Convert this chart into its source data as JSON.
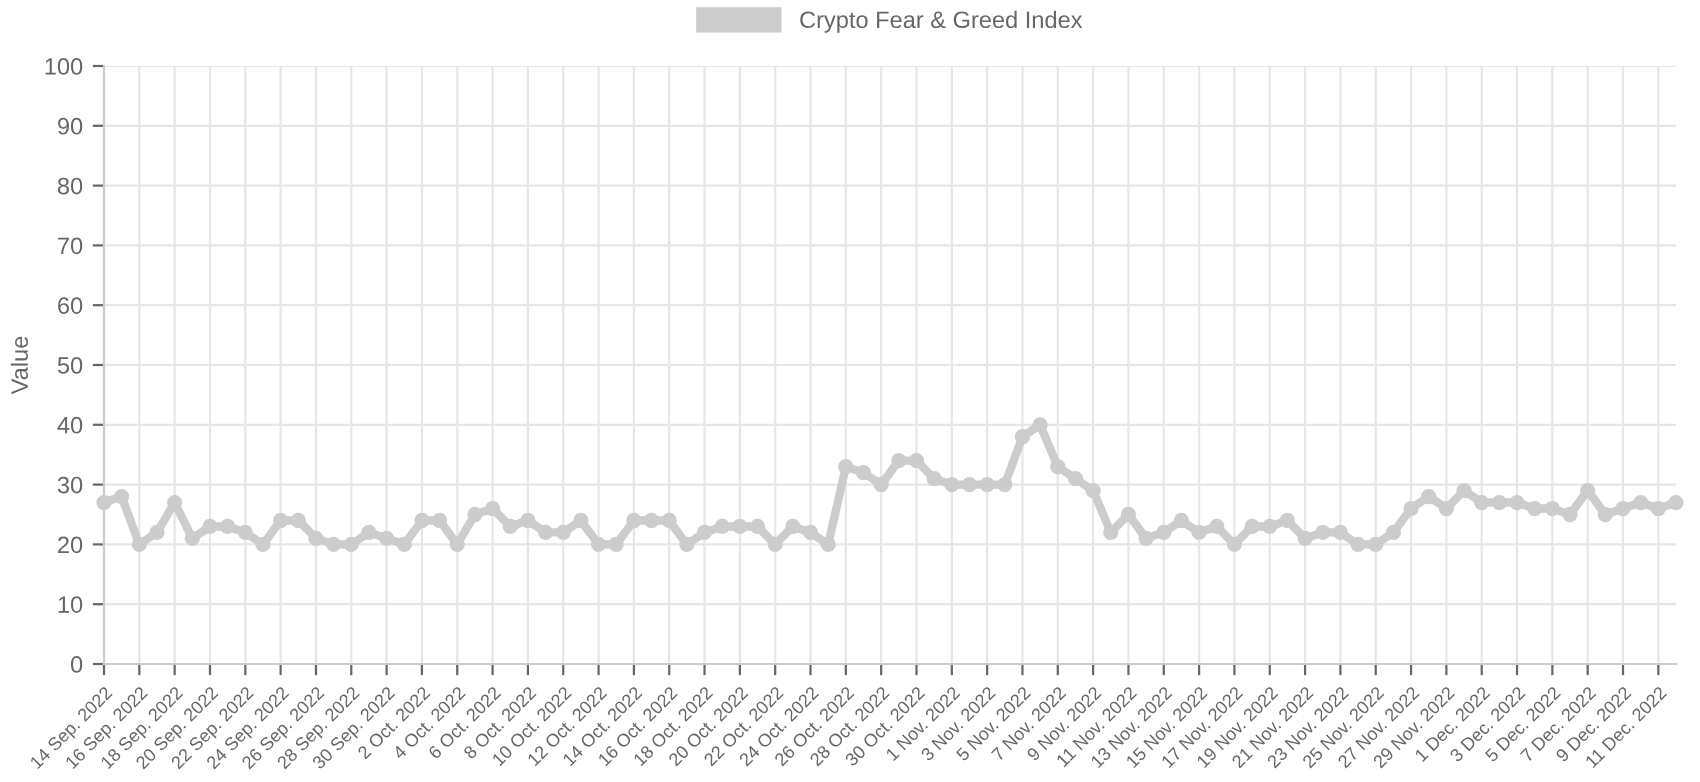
{
  "chart_data": {
    "type": "line",
    "ylabel": "Value",
    "categories": [
      "14 Sep. 2022",
      null,
      "16 Sep. 2022",
      null,
      "18 Sep. 2022",
      null,
      "20 Sep. 2022",
      null,
      "22 Sep. 2022",
      null,
      "24 Sep. 2022",
      null,
      "26 Sep. 2022",
      null,
      "28 Sep. 2022",
      null,
      "30 Sep. 2022",
      null,
      "2 Oct. 2022",
      null,
      "4 Oct. 2022",
      null,
      "6 Oct. 2022",
      null,
      "8 Oct. 2022",
      null,
      "10 Oct. 2022",
      null,
      "12 Oct. 2022",
      null,
      "14 Oct. 2022",
      null,
      "16 Oct. 2022",
      null,
      "18 Oct. 2022",
      null,
      "20 Oct. 2022",
      null,
      "22 Oct. 2022",
      null,
      "24 Oct. 2022",
      null,
      "26 Oct. 2022",
      null,
      "28 Oct. 2022",
      null,
      "30 Oct. 2022",
      null,
      "1 Nov. 2022",
      null,
      "3 Nov. 2022",
      null,
      "5 Nov. 2022",
      null,
      "7 Nov. 2022",
      null,
      "9 Nov. 2022",
      null,
      "11 Nov. 2022",
      null,
      "13 Nov. 2022",
      null,
      "15 Nov. 2022",
      null,
      "17 Nov. 2022",
      null,
      "19 Nov. 2022",
      null,
      "21 Nov. 2022",
      null,
      "23 Nov. 2022",
      null,
      "25 Nov. 2022",
      null,
      "27 Nov. 2022",
      null,
      "29 Nov. 2022",
      null,
      "1 Dec. 2022",
      null,
      "3 Dec. 2022",
      null,
      "5 Dec. 2022",
      null,
      "7 Dec. 2022",
      null,
      "9 Dec. 2022",
      null,
      "11 Dec. 2022",
      null
    ],
    "series": [
      {
        "name": "Crypto Fear & Greed Index",
        "color": "#cccccc",
        "values": [
          27,
          28,
          20,
          22,
          27,
          21,
          23,
          23,
          22,
          20,
          24,
          24,
          21,
          20,
          20,
          22,
          21,
          20,
          24,
          24,
          20,
          25,
          26,
          23,
          24,
          22,
          22,
          24,
          20,
          20,
          24,
          24,
          24,
          20,
          22,
          23,
          23,
          23,
          20,
          23,
          22,
          20,
          33,
          32,
          30,
          34,
          34,
          31,
          30,
          30,
          30,
          30,
          38,
          40,
          33,
          31,
          29,
          22,
          25,
          21,
          22,
          24,
          22,
          23,
          20,
          23,
          23,
          24,
          21,
          22,
          22,
          20,
          20,
          22,
          26,
          28,
          26,
          29,
          27,
          27,
          27,
          26,
          26,
          25,
          29,
          25,
          26,
          27,
          26,
          27
        ]
      }
    ],
    "ylim": [
      0,
      100
    ],
    "yticks": [
      0,
      10,
      20,
      30,
      40,
      50,
      60,
      70,
      80,
      90,
      100
    ],
    "grid": true,
    "legend": "top",
    "marker": "circle",
    "line_style": "solid"
  }
}
